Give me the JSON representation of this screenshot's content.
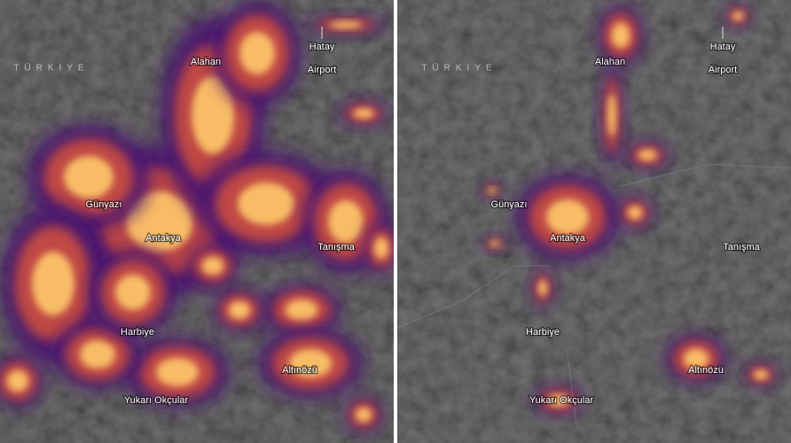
{
  "panels": [
    {
      "country": "TÜRKIYE",
      "labels": {
        "alahan": "Alahan",
        "airport": [
          "Hatay",
          "Airport"
        ],
        "gunyazi": "Günyazı",
        "antakya": "Antakya",
        "tanisma": "Tanışma",
        "harbiye": "Harbiye",
        "altinozu": "Altınözü",
        "okcular": "Yukarı Okçular"
      }
    },
    {
      "country": "TÜRKIYE",
      "labels": {
        "alahan": "Alahan",
        "airport": [
          "Hatay",
          "Airport"
        ],
        "gunyazi": "Günyazı",
        "antakya": "Antakya",
        "tanisma": "Tanışma",
        "harbiye": "Harbiye",
        "altinozu": "Altınözü",
        "okcular": "Yukarı Okçular"
      }
    }
  ]
}
